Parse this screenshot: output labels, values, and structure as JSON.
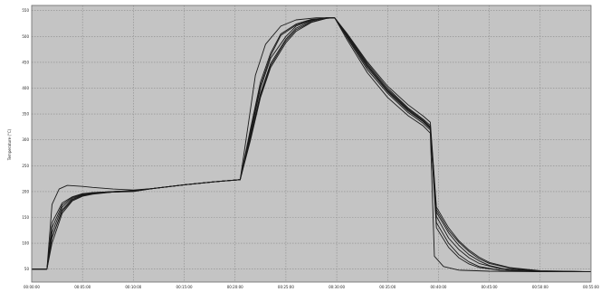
{
  "chart_data": {
    "type": "line",
    "title": "",
    "xlabel": "",
    "ylabel": "Temperature (°C)",
    "x_tick_labels": [
      "00:00:00",
      "00:05:00",
      "00:10:00",
      "00:15:00",
      "00:20:00",
      "00:25:00",
      "00:30:00",
      "00:35:00",
      "00:40:00",
      "00:45:00",
      "00:50:00",
      "00:55:00"
    ],
    "y_ticks": [
      50,
      100,
      150,
      200,
      250,
      300,
      350,
      400,
      450,
      500,
      550
    ],
    "xlim": [
      0,
      55
    ],
    "ylim": [
      25,
      560
    ],
    "grid": true,
    "legend": "none",
    "colors": {
      "plot_bg": "#c4c4c4",
      "grid": "#8a8a8a",
      "line": "#1a1a1a",
      "frame": "#6a6a6a"
    },
    "series": [
      {
        "points": [
          [
            0,
            50
          ],
          [
            1.5,
            50
          ],
          [
            2,
            110
          ],
          [
            3,
            165
          ],
          [
            4,
            185
          ],
          [
            5,
            193
          ],
          [
            6,
            196
          ],
          [
            8,
            199
          ],
          [
            10,
            201
          ],
          [
            12,
            206
          ],
          [
            15,
            213
          ],
          [
            18,
            219
          ],
          [
            20.5,
            223
          ],
          [
            21.5,
            305
          ],
          [
            22.5,
            390
          ],
          [
            23.5,
            448
          ],
          [
            25,
            495
          ],
          [
            26,
            516
          ],
          [
            27.5,
            530
          ],
          [
            29,
            536
          ],
          [
            29.8,
            536
          ],
          [
            31,
            503
          ],
          [
            33,
            445
          ],
          [
            35,
            397
          ],
          [
            37,
            360
          ],
          [
            38.5,
            338
          ],
          [
            39.2,
            325
          ],
          [
            39.8,
            160
          ],
          [
            41,
            120
          ],
          [
            42,
            96
          ],
          [
            43,
            78
          ],
          [
            44,
            66
          ],
          [
            45,
            57
          ],
          [
            47,
            48
          ],
          [
            50,
            45
          ],
          [
            55,
            45
          ]
        ]
      },
      {
        "points": [
          [
            0,
            50
          ],
          [
            1.5,
            50
          ],
          [
            2,
            140
          ],
          [
            3,
            178
          ],
          [
            4,
            190
          ],
          [
            5,
            196
          ],
          [
            6,
            198
          ],
          [
            8,
            200
          ],
          [
            10,
            202
          ],
          [
            12,
            206
          ],
          [
            15,
            213
          ],
          [
            18,
            219
          ],
          [
            20.5,
            223
          ],
          [
            21.5,
            320
          ],
          [
            22.5,
            412
          ],
          [
            23.5,
            468
          ],
          [
            24.5,
            505
          ],
          [
            26,
            524
          ],
          [
            27.5,
            533
          ],
          [
            29,
            536
          ],
          [
            29.8,
            536
          ],
          [
            31,
            498
          ],
          [
            33,
            436
          ],
          [
            35,
            390
          ],
          [
            37,
            353
          ],
          [
            38.5,
            332
          ],
          [
            39.2,
            319
          ],
          [
            39.8,
            140
          ],
          [
            41,
            100
          ],
          [
            42,
            78
          ],
          [
            43,
            64
          ],
          [
            44,
            55
          ],
          [
            46,
            48
          ],
          [
            50,
            45
          ],
          [
            55,
            45
          ]
        ]
      },
      {
        "points": [
          [
            0,
            50
          ],
          [
            1.5,
            50
          ],
          [
            2,
            175
          ],
          [
            2.7,
            205
          ],
          [
            3.5,
            212
          ],
          [
            5,
            210
          ],
          [
            6,
            208
          ],
          [
            8,
            205
          ],
          [
            10,
            203
          ],
          [
            12,
            206
          ],
          [
            15,
            213
          ],
          [
            18,
            219
          ],
          [
            20.5,
            223
          ],
          [
            21.3,
            330
          ],
          [
            22,
            425
          ],
          [
            23,
            485
          ],
          [
            24.5,
            520
          ],
          [
            26,
            532
          ],
          [
            28,
            536
          ],
          [
            29.8,
            536
          ],
          [
            31,
            494
          ],
          [
            33,
            430
          ],
          [
            35,
            382
          ],
          [
            37,
            347
          ],
          [
            38.5,
            327
          ],
          [
            39.2,
            313
          ],
          [
            39.6,
            75
          ],
          [
            40.5,
            55
          ],
          [
            42,
            48
          ],
          [
            45,
            46
          ],
          [
            50,
            45
          ],
          [
            55,
            45
          ]
        ]
      },
      {
        "points": [
          [
            0,
            50
          ],
          [
            1.5,
            50
          ],
          [
            2,
            120
          ],
          [
            3,
            170
          ],
          [
            4,
            187
          ],
          [
            5,
            194
          ],
          [
            6,
            197
          ],
          [
            8,
            200
          ],
          [
            10,
            201
          ],
          [
            12,
            206
          ],
          [
            15,
            213
          ],
          [
            18,
            219
          ],
          [
            20.5,
            223
          ],
          [
            21.5,
            310
          ],
          [
            22.5,
            400
          ],
          [
            23.5,
            458
          ],
          [
            25,
            500
          ],
          [
            26,
            520
          ],
          [
            27.5,
            531
          ],
          [
            29,
            536
          ],
          [
            29.8,
            536
          ],
          [
            31,
            500
          ],
          [
            33,
            440
          ],
          [
            35,
            393
          ],
          [
            37,
            356
          ],
          [
            38.5,
            335
          ],
          [
            39.2,
            322
          ],
          [
            39.8,
            152
          ],
          [
            41,
            110
          ],
          [
            42,
            88
          ],
          [
            43,
            72
          ],
          [
            44,
            61
          ],
          [
            46,
            51
          ],
          [
            50,
            46
          ],
          [
            55,
            45
          ]
        ]
      },
      {
        "points": [
          [
            0,
            50
          ],
          [
            1.5,
            50
          ],
          [
            2,
            100
          ],
          [
            3,
            158
          ],
          [
            4,
            182
          ],
          [
            5,
            191
          ],
          [
            6,
            195
          ],
          [
            8,
            199
          ],
          [
            10,
            200
          ],
          [
            12,
            206
          ],
          [
            15,
            213
          ],
          [
            18,
            219
          ],
          [
            20.5,
            223
          ],
          [
            21.5,
            298
          ],
          [
            22.5,
            382
          ],
          [
            23.5,
            440
          ],
          [
            25,
            488
          ],
          [
            26,
            510
          ],
          [
            27.5,
            527
          ],
          [
            29,
            535
          ],
          [
            29.8,
            536
          ],
          [
            31,
            505
          ],
          [
            33,
            448
          ],
          [
            35,
            400
          ],
          [
            37,
            362
          ],
          [
            38.5,
            340
          ],
          [
            39.2,
            328
          ],
          [
            39.8,
            165
          ],
          [
            41,
            125
          ],
          [
            42,
            102
          ],
          [
            43,
            84
          ],
          [
            44,
            70
          ],
          [
            45,
            61
          ],
          [
            47,
            52
          ],
          [
            50,
            46
          ],
          [
            55,
            45
          ]
        ]
      },
      {
        "points": [
          [
            0,
            50
          ],
          [
            1.5,
            50
          ],
          [
            2,
            130
          ],
          [
            3,
            174
          ],
          [
            4,
            189
          ],
          [
            5,
            195
          ],
          [
            6,
            198
          ],
          [
            8,
            200
          ],
          [
            10,
            201
          ],
          [
            12,
            206
          ],
          [
            15,
            213
          ],
          [
            18,
            219
          ],
          [
            20.5,
            223
          ],
          [
            21.5,
            315
          ],
          [
            22.5,
            405
          ],
          [
            23.5,
            463
          ],
          [
            24.5,
            502
          ],
          [
            26,
            522
          ],
          [
            27.5,
            532
          ],
          [
            29,
            536
          ],
          [
            29.8,
            536
          ],
          [
            31,
            502
          ],
          [
            33,
            443
          ],
          [
            35,
            395
          ],
          [
            37,
            358
          ],
          [
            38.5,
            336
          ],
          [
            39.2,
            324
          ],
          [
            39.8,
            130
          ],
          [
            41,
            92
          ],
          [
            42,
            72
          ],
          [
            43,
            60
          ],
          [
            44,
            53
          ],
          [
            46,
            48
          ],
          [
            50,
            45
          ],
          [
            55,
            45
          ]
        ]
      },
      {
        "points": [
          [
            0,
            50
          ],
          [
            1.5,
            50
          ],
          [
            2,
            112
          ],
          [
            3,
            162
          ],
          [
            4,
            184
          ],
          [
            5,
            192
          ],
          [
            6,
            196
          ],
          [
            8,
            199
          ],
          [
            10,
            201
          ],
          [
            12,
            206
          ],
          [
            15,
            213
          ],
          [
            18,
            219
          ],
          [
            20.5,
            223
          ],
          [
            21.5,
            302
          ],
          [
            22.5,
            386
          ],
          [
            23.5,
            444
          ],
          [
            25,
            492
          ],
          [
            26,
            513
          ],
          [
            27.5,
            528
          ],
          [
            29,
            535
          ],
          [
            29.8,
            536
          ],
          [
            31,
            506
          ],
          [
            33,
            451
          ],
          [
            35,
            404
          ],
          [
            37,
            368
          ],
          [
            38.5,
            346
          ],
          [
            39.2,
            334
          ],
          [
            39.8,
            170
          ],
          [
            41,
            130
          ],
          [
            42,
            105
          ],
          [
            43,
            87
          ],
          [
            44,
            73
          ],
          [
            45,
            63
          ],
          [
            47,
            53
          ],
          [
            50,
            47
          ],
          [
            55,
            45
          ]
        ]
      }
    ]
  }
}
